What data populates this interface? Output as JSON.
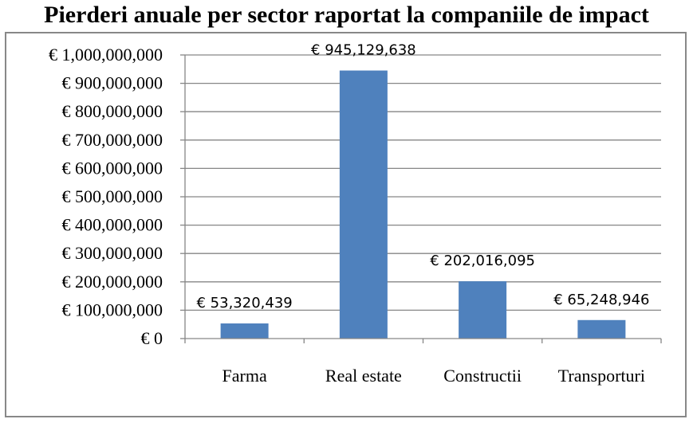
{
  "chart_data": {
    "type": "bar",
    "title": "Pierderi anuale per sector raportat la companiile de impact",
    "categories": [
      "Farma",
      "Real estate",
      "Constructii",
      "Transporturi"
    ],
    "values": [
      53320439,
      945129638,
      202016095,
      65248946
    ],
    "data_labels": [
      "€ 53,320,439",
      "€ 945,129,638",
      "€ 202,016,095",
      "€ 65,248,946"
    ],
    "ylim": [
      0,
      1000000000
    ],
    "yticks": [
      0,
      100000000,
      200000000,
      300000000,
      400000000,
      500000000,
      600000000,
      700000000,
      800000000,
      900000000,
      1000000000
    ],
    "ytick_labels": [
      "€ 0",
      "€ 100,000,000",
      "€ 200,000,000",
      "€ 300,000,000",
      "€ 400,000,000",
      "€ 500,000,000",
      "€ 600,000,000",
      "€ 700,000,000",
      "€ 800,000,000",
      "€ 900,000,000",
      "€ 1,000,000,000"
    ],
    "grid": true,
    "legend": "none",
    "bar_color": "#4F81BD",
    "grid_color": "#868686"
  }
}
